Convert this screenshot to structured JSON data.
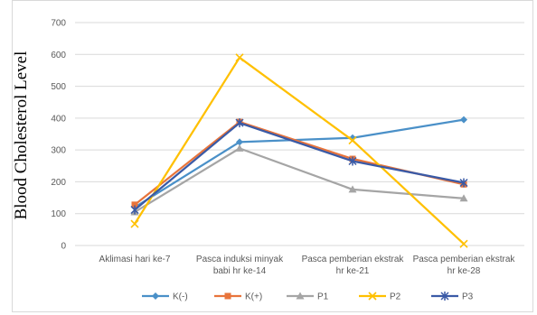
{
  "chart_data": {
    "type": "line",
    "title": "",
    "xlabel": "",
    "ylabel": "Blood Cholesterol Level",
    "ylim": [
      0,
      700
    ],
    "yticks": [
      0,
      100,
      200,
      300,
      400,
      500,
      600,
      700
    ],
    "categories": [
      [
        "Aklimasi hari ke-7"
      ],
      [
        "Pasca induksi minyak",
        "babi hr ke-14"
      ],
      [
        "Pasca pemberian ekstrak",
        "hr ke-21"
      ],
      [
        "Pasca pemberian ekstrak",
        "hr ke-28"
      ]
    ],
    "grid": true,
    "legend_position": "bottom",
    "series": [
      {
        "name": "K(-)",
        "values": [
          120,
          325,
          338,
          395
        ],
        "color": "#4a90c8",
        "marker": "diamond"
      },
      {
        "name": "K(+)",
        "values": [
          128,
          388,
          272,
          192
        ],
        "color": "#e8743b",
        "marker": "square"
      },
      {
        "name": "P1",
        "values": [
          105,
          305,
          176,
          148
        ],
        "color": "#a5a5a5",
        "marker": "triangle"
      },
      {
        "name": "P2",
        "values": [
          68,
          590,
          330,
          5
        ],
        "color": "#ffc000",
        "marker": "x"
      },
      {
        "name": "P3",
        "values": [
          112,
          385,
          265,
          197
        ],
        "color": "#3a5aa6",
        "marker": "star"
      }
    ]
  }
}
